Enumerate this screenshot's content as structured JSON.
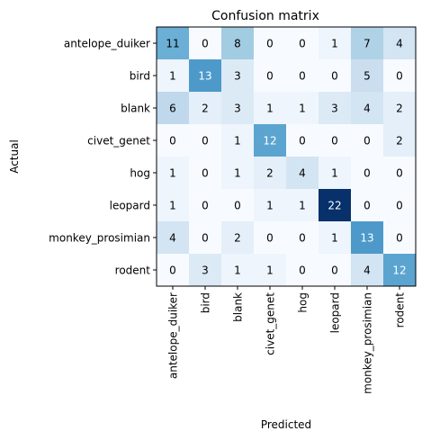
{
  "chart_data": {
    "type": "heatmap",
    "title": "Confusion matrix",
    "xlabel": "Predicted",
    "ylabel": "Actual",
    "row_labels": [
      "antelope_duiker",
      "bird",
      "blank",
      "civet_genet",
      "hog",
      "leopard",
      "monkey_prosimian",
      "rodent"
    ],
    "col_labels": [
      "antelope_duiker",
      "bird",
      "blank",
      "civet_genet",
      "hog",
      "leopard",
      "monkey_prosimian",
      "rodent"
    ],
    "values": [
      [
        11,
        0,
        8,
        0,
        0,
        1,
        7,
        4
      ],
      [
        1,
        13,
        3,
        0,
        0,
        0,
        5,
        0
      ],
      [
        6,
        2,
        3,
        1,
        1,
        3,
        4,
        2
      ],
      [
        0,
        0,
        1,
        12,
        0,
        0,
        0,
        2
      ],
      [
        1,
        0,
        1,
        2,
        4,
        1,
        0,
        0
      ],
      [
        1,
        0,
        0,
        1,
        1,
        22,
        0,
        0
      ],
      [
        4,
        0,
        2,
        0,
        0,
        1,
        13,
        0
      ],
      [
        0,
        3,
        1,
        1,
        0,
        0,
        4,
        12
      ]
    ],
    "vmin": 0,
    "vmax": 22,
    "colormap": "Blues",
    "grid": false
  }
}
